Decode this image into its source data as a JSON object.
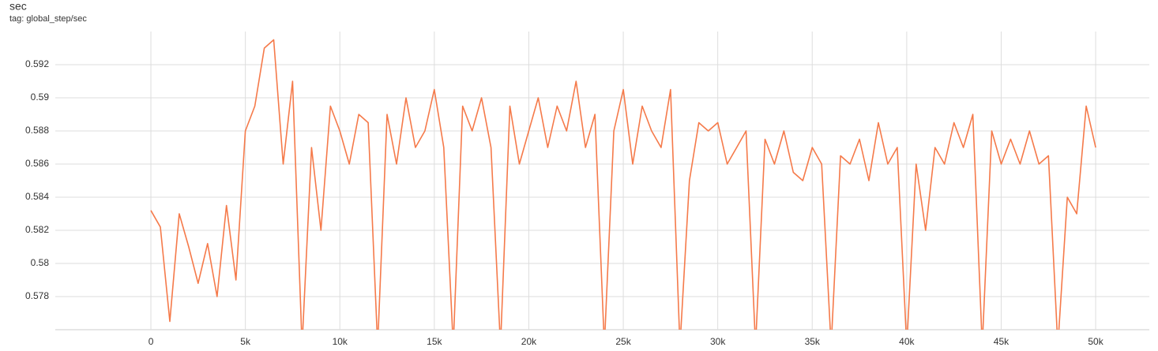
{
  "chart_data": {
    "type": "line",
    "title": "sec",
    "subtitle": "tag: global_step/sec",
    "x": [
      0,
      500,
      1000,
      1500,
      2000,
      2500,
      3000,
      3500,
      4000,
      4500,
      5000,
      5500,
      6000,
      6500,
      7000,
      7500,
      8000,
      8500,
      9000,
      9500,
      10000,
      10500,
      11000,
      11500,
      12000,
      12500,
      13000,
      13500,
      14000,
      14500,
      15000,
      15500,
      16000,
      16500,
      17000,
      17500,
      18000,
      18500,
      19000,
      19500,
      20000,
      20500,
      21000,
      21500,
      22000,
      22500,
      23000,
      23500,
      24000,
      24500,
      25000,
      25500,
      26000,
      26500,
      27000,
      27500,
      28000,
      28500,
      29000,
      29500,
      30000,
      30500,
      31000,
      31500,
      32000,
      32500,
      33000,
      33500,
      34000,
      34500,
      35000,
      35500,
      36000,
      36500,
      37000,
      37500,
      38000,
      38500,
      39000,
      39500,
      40000,
      40500,
      41000,
      41500,
      42000,
      42500,
      43000,
      43500,
      44000,
      44500,
      45000,
      45500,
      46000,
      46500,
      47000,
      47500,
      48000,
      48500,
      49000,
      49500,
      50000
    ],
    "series": [
      {
        "name": "sec",
        "color": "#f57a4a",
        "values": [
          0.5832,
          0.5822,
          0.5765,
          0.583,
          0.581,
          0.5788,
          0.5812,
          0.578,
          0.5835,
          0.579,
          0.588,
          0.5895,
          0.593,
          0.5935,
          0.586,
          0.591,
          0.575,
          0.587,
          0.582,
          0.5895,
          0.588,
          0.586,
          0.589,
          0.5885,
          0.575,
          0.589,
          0.586,
          0.59,
          0.587,
          0.588,
          0.5905,
          0.587,
          0.575,
          0.5895,
          0.588,
          0.59,
          0.587,
          0.575,
          0.5895,
          0.586,
          0.588,
          0.59,
          0.587,
          0.5895,
          0.588,
          0.591,
          0.587,
          0.589,
          0.575,
          0.588,
          0.5905,
          0.586,
          0.5895,
          0.588,
          0.587,
          0.5905,
          0.575,
          0.585,
          0.5885,
          0.588,
          0.5885,
          0.586,
          0.587,
          0.588,
          0.575,
          0.5875,
          0.586,
          0.588,
          0.5855,
          0.585,
          0.587,
          0.586,
          0.575,
          0.5865,
          0.586,
          0.5875,
          0.585,
          0.5885,
          0.586,
          0.587,
          0.575,
          0.586,
          0.582,
          0.587,
          0.586,
          0.5885,
          0.587,
          0.589,
          0.575,
          0.588,
          0.586,
          0.5875,
          0.586,
          0.588,
          0.586,
          0.5865,
          0.575,
          0.584,
          0.583,
          0.5895,
          0.587
        ]
      }
    ],
    "xlim": [
      -5060,
      52840
    ],
    "ylim": [
      0.576,
      0.594
    ],
    "xticks": [
      0,
      {
        "value": 5000,
        "label": "5k"
      },
      {
        "value": 10000,
        "label": "10k"
      },
      {
        "value": 15000,
        "label": "15k"
      },
      {
        "value": 20000,
        "label": "20k"
      },
      {
        "value": 25000,
        "label": "25k"
      },
      {
        "value": 30000,
        "label": "30k"
      },
      {
        "value": 35000,
        "label": "35k"
      },
      {
        "value": 40000,
        "label": "40k"
      },
      {
        "value": 45000,
        "label": "45k"
      },
      {
        "value": 50000,
        "label": "50k"
      }
    ],
    "yticks": [
      0.578,
      0.58,
      0.582,
      0.584,
      0.586,
      0.588,
      0.59,
      0.592
    ],
    "grid": true
  }
}
